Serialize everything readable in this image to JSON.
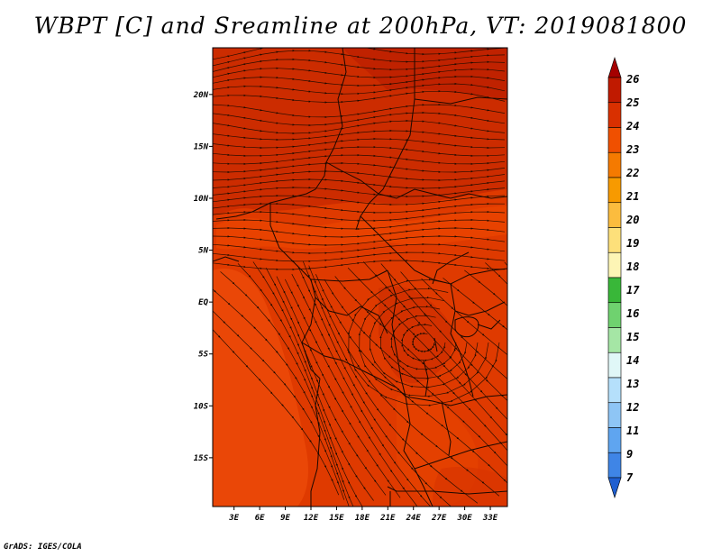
{
  "title": "WBPT [C] and Sreamline at 200hPa, VT: 2019081800",
  "footer": "GrADS: IGES/COLA",
  "map": {
    "lat_labels": [
      "20N",
      "15N",
      "10N",
      "5N",
      "EQ",
      "5S",
      "10S",
      "15S"
    ],
    "lat_values": [
      20,
      15,
      10,
      5,
      0,
      -5,
      -10,
      -15
    ],
    "lon_labels": [
      "3E",
      "6E",
      "9E",
      "12E",
      "15E",
      "18E",
      "21E",
      "24E",
      "27E",
      "30E",
      "33E"
    ],
    "lon_values": [
      3,
      6,
      9,
      12,
      15,
      18,
      21,
      24,
      27,
      30,
      33
    ],
    "extent": {
      "lon_min": 0.5,
      "lon_max": 35,
      "lat_min": -19.7,
      "lat_max": 24.5
    }
  },
  "colorbar": {
    "labels": [
      "26",
      "25",
      "24",
      "23",
      "22",
      "21",
      "20",
      "19",
      "18",
      "17",
      "16",
      "15",
      "14",
      "13",
      "12",
      "11",
      "9",
      "7"
    ],
    "colors": [
      "#a50000",
      "#c01a00",
      "#d93000",
      "#f05000",
      "#f57a00",
      "#f79a00",
      "#fbbc3e",
      "#fde07a",
      "#fdf5b5",
      "#39b739",
      "#6fd26f",
      "#a5e6a5",
      "#e0f7f7",
      "#b5e0fb",
      "#8ec5f5",
      "#5fa5f0",
      "#3f85e6",
      "#1f5fd0"
    ]
  },
  "field_colors": {
    "dark": "#c82a00",
    "mid": "#df3a00",
    "light": "#f04a10"
  }
}
